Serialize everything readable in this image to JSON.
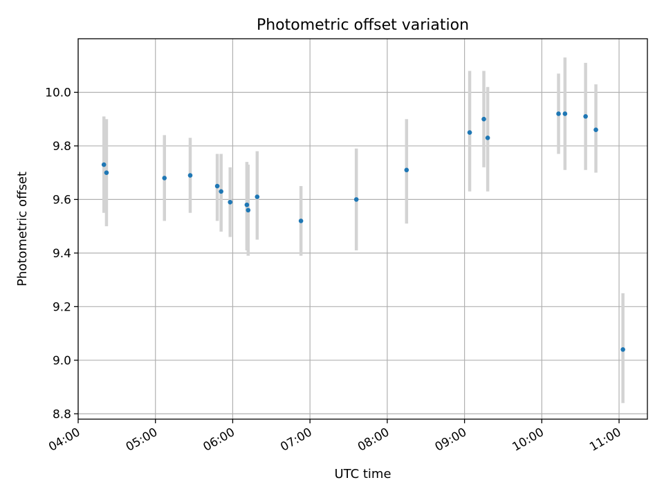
{
  "chart_data": {
    "type": "scatter",
    "title": "Photometric offset variation",
    "xlabel": "UTC time",
    "ylabel": "Photometric offset",
    "grid": true,
    "x_ticks": [
      "04:00",
      "05:00",
      "06:00",
      "07:00",
      "08:00",
      "09:00",
      "10:00",
      "11:00"
    ],
    "y_ticks": [
      "8.8",
      "9.0",
      "9.2",
      "9.4",
      "9.6",
      "9.8",
      "10.0"
    ],
    "xlim": [
      "04:00",
      "11:22"
    ],
    "ylim": [
      8.78,
      10.2
    ],
    "colors": {
      "point": "#1f77b4",
      "errorbar": "#d3d3d3"
    },
    "points": [
      {
        "x": "04:20",
        "y": 9.73,
        "err_low": 9.55,
        "err_high": 9.91
      },
      {
        "x": "04:22",
        "y": 9.7,
        "err_low": 9.5,
        "err_high": 9.9
      },
      {
        "x": "05:07",
        "y": 9.68,
        "err_low": 9.52,
        "err_high": 9.84
      },
      {
        "x": "05:27",
        "y": 9.69,
        "err_low": 9.55,
        "err_high": 9.83
      },
      {
        "x": "05:48",
        "y": 9.65,
        "err_low": 9.52,
        "err_high": 9.77
      },
      {
        "x": "05:51",
        "y": 9.63,
        "err_low": 9.48,
        "err_high": 9.77
      },
      {
        "x": "05:58",
        "y": 9.59,
        "err_low": 9.46,
        "err_high": 9.72
      },
      {
        "x": "06:11",
        "y": 9.58,
        "err_low": 9.41,
        "err_high": 9.74
      },
      {
        "x": "06:12",
        "y": 9.56,
        "err_low": 9.39,
        "err_high": 9.73
      },
      {
        "x": "06:19",
        "y": 9.61,
        "err_low": 9.45,
        "err_high": 9.78
      },
      {
        "x": "06:53",
        "y": 9.52,
        "err_low": 9.39,
        "err_high": 9.65
      },
      {
        "x": "07:36",
        "y": 9.6,
        "err_low": 9.41,
        "err_high": 9.79
      },
      {
        "x": "08:15",
        "y": 9.71,
        "err_low": 9.51,
        "err_high": 9.9
      },
      {
        "x": "09:04",
        "y": 9.85,
        "err_low": 9.63,
        "err_high": 10.08
      },
      {
        "x": "09:15",
        "y": 9.9,
        "err_low": 9.72,
        "err_high": 10.08
      },
      {
        "x": "09:18",
        "y": 9.83,
        "err_low": 9.63,
        "err_high": 10.02
      },
      {
        "x": "10:13",
        "y": 9.92,
        "err_low": 9.77,
        "err_high": 10.07
      },
      {
        "x": "10:18",
        "y": 9.92,
        "err_low": 9.71,
        "err_high": 10.13
      },
      {
        "x": "10:34",
        "y": 9.91,
        "err_low": 9.71,
        "err_high": 10.11
      },
      {
        "x": "10:42",
        "y": 9.86,
        "err_low": 9.7,
        "err_high": 10.03
      },
      {
        "x": "11:03",
        "y": 9.04,
        "err_low": 8.84,
        "err_high": 9.25
      }
    ]
  }
}
